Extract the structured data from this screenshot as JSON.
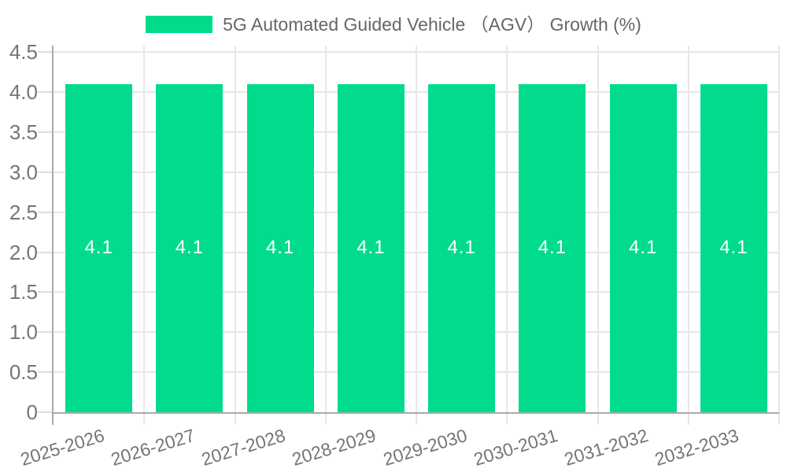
{
  "chart_data": {
    "type": "bar",
    "title": "",
    "legend_position": "top",
    "categories": [
      "2025-2026",
      "2026-2027",
      "2027-2028",
      "2028-2029",
      "2029-2030",
      "2030-2031",
      "2031-2032",
      "2032-2033"
    ],
    "series": [
      {
        "name": "5G Automated Guided Vehicle （AGV） Growth (%)",
        "values": [
          4.1,
          4.1,
          4.1,
          4.1,
          4.1,
          4.1,
          4.1,
          4.1
        ],
        "data_labels": [
          "4.1",
          "4.1",
          "4.1",
          "4.1",
          "4.1",
          "4.1",
          "4.1",
          "4.1"
        ]
      }
    ],
    "xlabel": "",
    "ylabel": "",
    "ylim": [
      0,
      4.58
    ],
    "ytick_values": [
      0,
      0.5,
      1.0,
      1.5,
      2.0,
      2.5,
      3.0,
      3.5,
      4.0,
      4.5
    ],
    "ytick_labels": [
      "0",
      "0.5",
      "1.0",
      "1.5",
      "2.0",
      "2.5",
      "3.0",
      "3.5",
      "4.0",
      "4.5"
    ],
    "x_tick_rotation_deg": 17,
    "grid": true,
    "colors": {
      "bar": "#00dc8c",
      "bar_label": "#ffffff",
      "grid": "#e7e7e7",
      "tick": "#dedede",
      "axis": "#aaaaaa",
      "tick_label": "#757575",
      "legend_text": "#666666",
      "background": "#ffffff"
    }
  }
}
